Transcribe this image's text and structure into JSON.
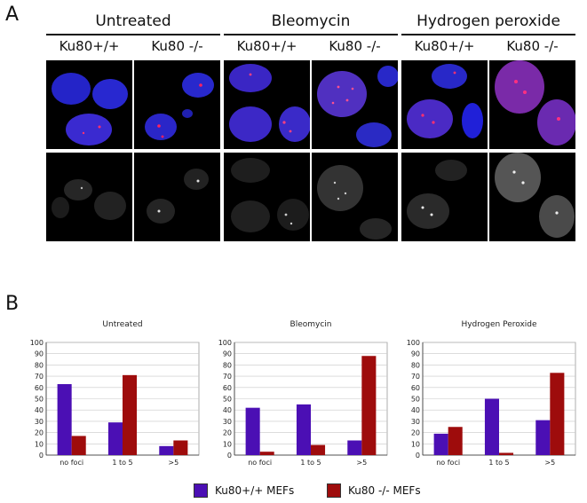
{
  "panel_a": {
    "letter": "A",
    "groups": [
      {
        "title": "Untreated",
        "columns": [
          "Ku80+/+",
          "Ku80 -/-"
        ]
      },
      {
        "title": "Bleomycin",
        "columns": [
          "Ku80+/+",
          "Ku80 -/-"
        ]
      },
      {
        "title": "Hydrogen peroxide",
        "columns": [
          "Ku80+/+",
          "Ku80 -/-"
        ]
      }
    ]
  },
  "panel_b": {
    "letter": "B",
    "legend": [
      {
        "label": "Ku80+/+ MEFs",
        "color": "#4b0fb4"
      },
      {
        "label": "Ku80 -/- MEFs",
        "color": "#9e0c0c"
      }
    ]
  },
  "chart_data": [
    {
      "type": "bar",
      "title": "Untreated",
      "categories": [
        "no foci",
        "1 to 5",
        ">5"
      ],
      "series": [
        {
          "name": "Ku80+/+ MEFs",
          "values": [
            63,
            29,
            8
          ],
          "color": "#4b0fb4"
        },
        {
          "name": "Ku80 -/- MEFs",
          "values": [
            17,
            71,
            13
          ],
          "color": "#9e0c0c"
        }
      ],
      "ylim": [
        0,
        100
      ],
      "yticks": [
        0,
        10,
        20,
        30,
        40,
        50,
        60,
        70,
        80,
        90,
        100
      ],
      "grid": true
    },
    {
      "type": "bar",
      "title": "Bleomycin",
      "categories": [
        "no foci",
        "1 to 5",
        ">5"
      ],
      "series": [
        {
          "name": "Ku80+/+ MEFs",
          "values": [
            42,
            45,
            13
          ],
          "color": "#4b0fb4"
        },
        {
          "name": "Ku80 -/- MEFs",
          "values": [
            3,
            9,
            88
          ],
          "color": "#9e0c0c"
        }
      ],
      "ylim": [
        0,
        100
      ],
      "yticks": [
        0,
        10,
        20,
        30,
        40,
        50,
        60,
        70,
        80,
        90,
        100
      ],
      "grid": true
    },
    {
      "type": "bar",
      "title": "Hydrogen Peroxide",
      "categories": [
        "no foci",
        "1 to 5",
        ">5"
      ],
      "series": [
        {
          "name": "Ku80+/+ MEFs",
          "values": [
            19,
            50,
            31
          ],
          "color": "#4b0fb4"
        },
        {
          "name": "Ku80 -/- MEFs",
          "values": [
            25,
            2,
            73
          ],
          "color": "#9e0c0c"
        }
      ],
      "ylim": [
        0,
        100
      ],
      "yticks": [
        0,
        10,
        20,
        30,
        40,
        50,
        60,
        70,
        80,
        90,
        100
      ],
      "grid": true
    }
  ]
}
